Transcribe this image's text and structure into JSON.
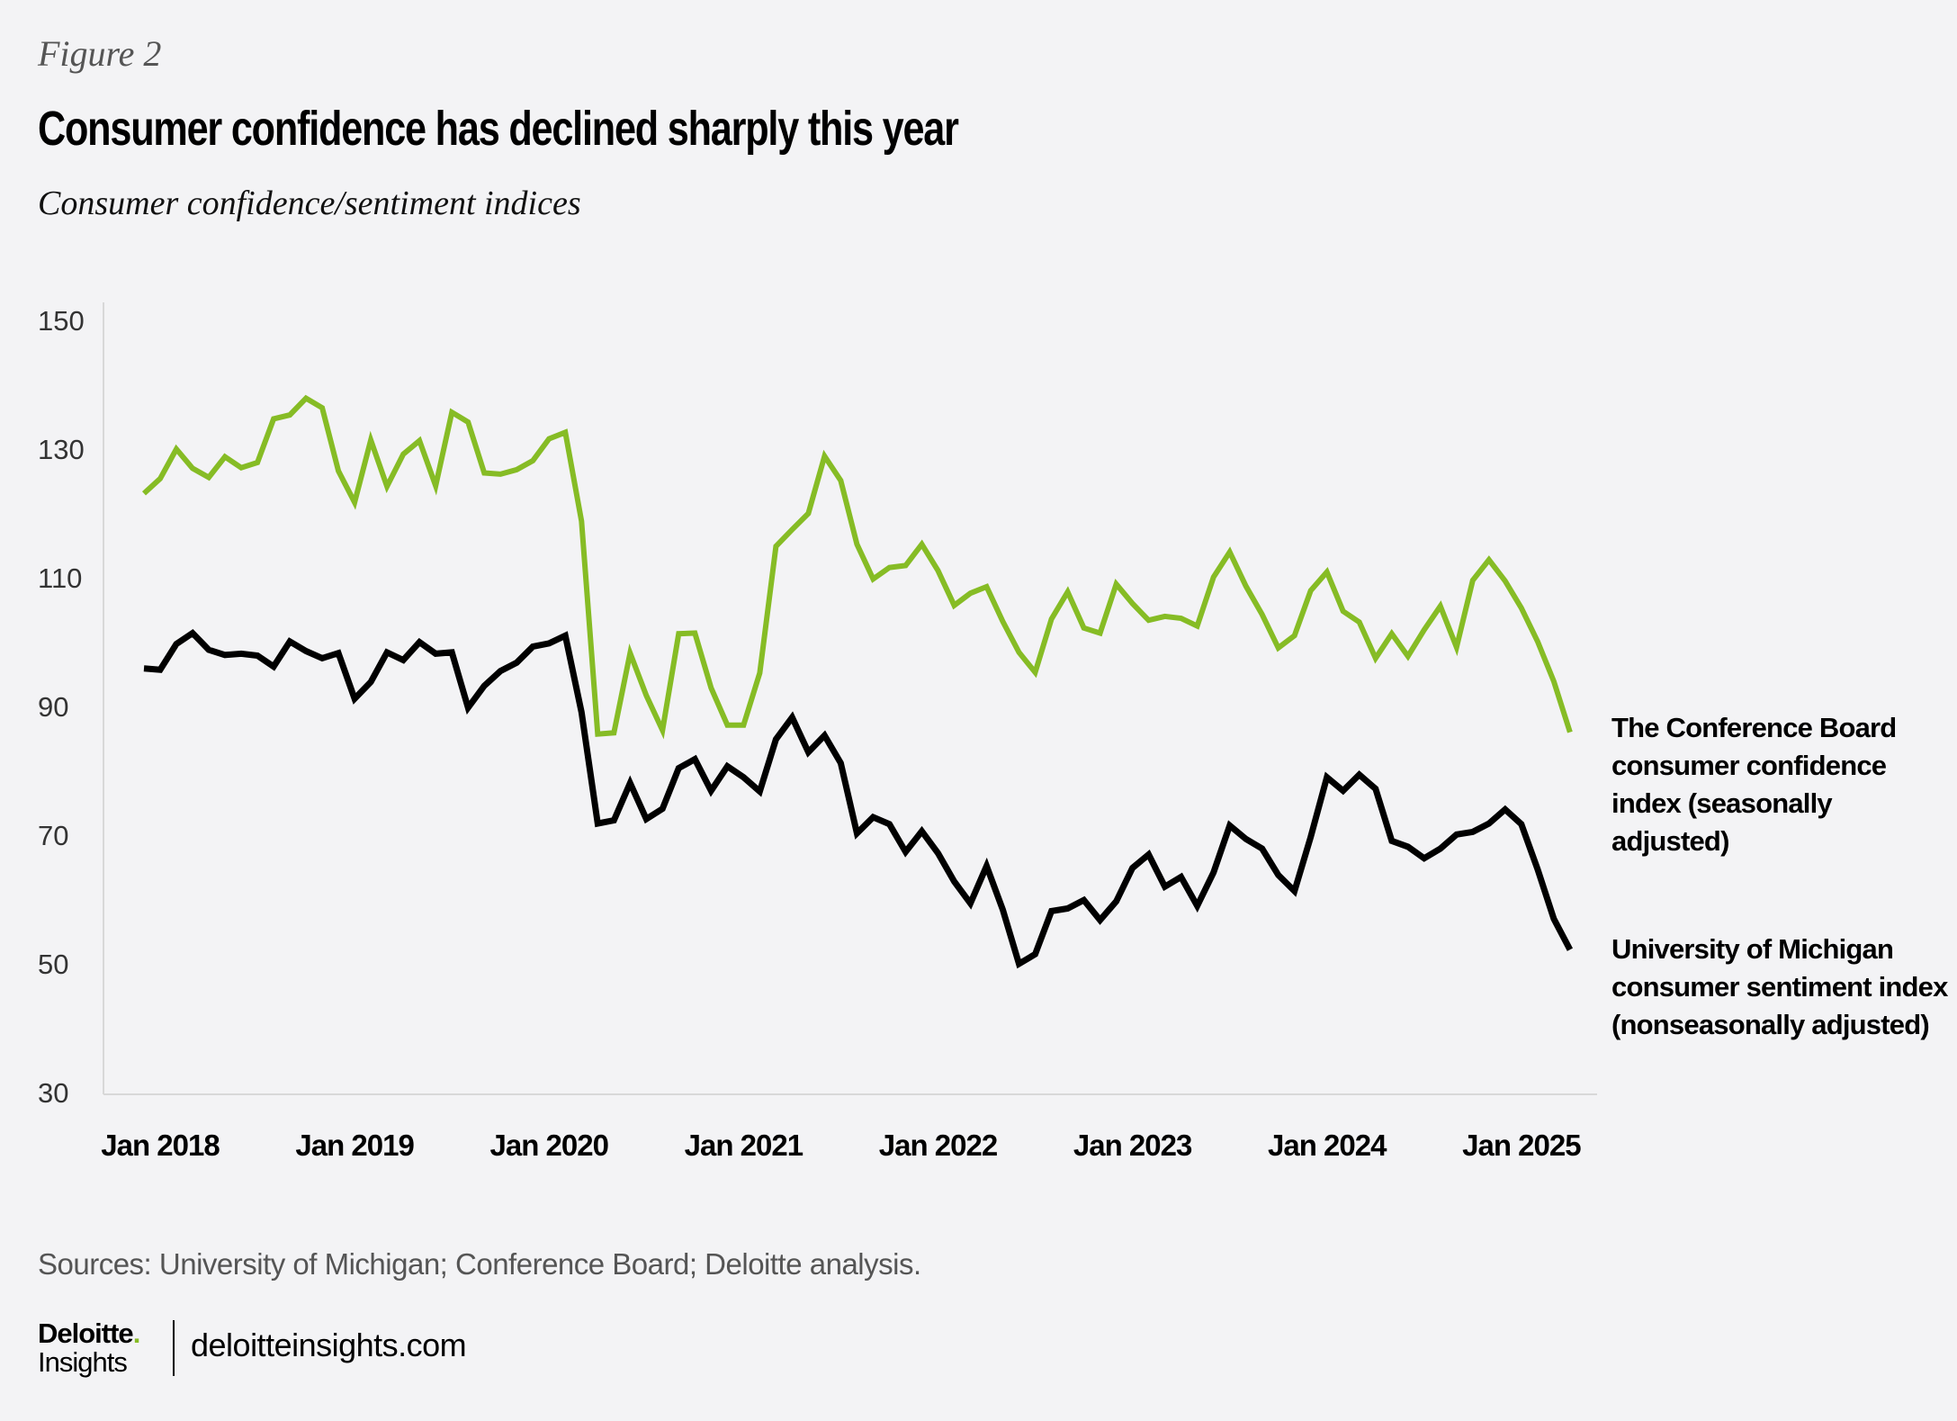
{
  "header": {
    "figure_label": "Figure 2",
    "title": "Consumer confidence has declined sharply this year",
    "subtitle": "Consumer confidence/sentiment indices"
  },
  "footer": {
    "sources": "Sources: University of Michigan; Conference Board; Deloitte analysis.",
    "logo_text": "Deloitte.",
    "logo_subtext": "Insights",
    "url": "deloitteinsights.com"
  },
  "colors": {
    "conference_board": "#86BC25",
    "michigan": "#000000",
    "background": "#F3F3F5"
  },
  "chart_data": {
    "type": "line",
    "title": "",
    "xlabel": "",
    "ylabel": "",
    "ylim": [
      30,
      150
    ],
    "yticks": [
      "150",
      "130",
      "110",
      "90",
      "70",
      "50",
      "30"
    ],
    "xticks": [
      "Jan 2018",
      "Jan 2019",
      "Jan 2020",
      "Jan 2021",
      "Jan 2022",
      "Jan 2023",
      "Jan 2024",
      "Jan 2025"
    ],
    "x_start": "Dec 2017",
    "x_end": "Apr 2025",
    "grid": false,
    "legend": "direct labels at right",
    "series": [
      {
        "name": "The Conference Board consumer confidence index (seasonally adjusted)",
        "values": [
          123.1,
          125.4,
          130.0,
          127.0,
          125.6,
          128.8,
          127.1,
          127.9,
          134.7,
          135.3,
          137.9,
          136.4,
          126.6,
          121.7,
          131.4,
          124.2,
          129.2,
          131.3,
          124.3,
          135.7,
          134.2,
          126.3,
          126.1,
          126.8,
          128.2,
          131.6,
          132.6,
          118.8,
          85.7,
          85.9,
          98.3,
          91.7,
          86.3,
          101.3,
          101.4,
          92.9,
          87.1,
          87.1,
          95.2,
          114.9,
          117.5,
          120.0,
          128.9,
          125.1,
          115.2,
          109.8,
          111.6,
          111.9,
          115.2,
          111.1,
          105.7,
          107.6,
          108.6,
          103.2,
          98.4,
          95.3,
          103.6,
          107.8,
          102.2,
          101.4,
          109.0,
          106.0,
          103.4,
          104.0,
          103.7,
          102.5,
          110.1,
          114.0,
          108.7,
          104.3,
          99.1,
          101.0,
          108.0,
          110.9,
          104.8,
          103.1,
          97.5,
          101.3,
          97.8,
          101.9,
          105.6,
          99.2,
          109.6,
          112.8,
          109.5,
          105.3,
          100.1,
          93.9,
          86.0
        ]
      },
      {
        "name": "University of Michigan consumer sentiment index (nonseasonally adjusted)",
        "values": [
          95.9,
          95.7,
          99.7,
          101.4,
          98.8,
          98.0,
          98.2,
          97.9,
          96.2,
          100.1,
          98.6,
          97.5,
          98.3,
          91.2,
          93.8,
          98.4,
          97.2,
          100.0,
          98.2,
          98.4,
          89.8,
          93.2,
          95.5,
          96.8,
          99.3,
          99.8,
          101.0,
          89.1,
          71.8,
          72.3,
          78.1,
          72.5,
          74.1,
          80.4,
          81.8,
          76.9,
          80.7,
          79.0,
          76.8,
          84.9,
          88.3,
          82.9,
          85.5,
          81.2,
          70.3,
          72.8,
          71.7,
          67.4,
          70.6,
          67.2,
          62.8,
          59.4,
          65.2,
          58.4,
          50.0,
          51.5,
          58.2,
          58.6,
          59.9,
          56.8,
          59.7,
          64.9,
          67.0,
          62.0,
          63.5,
          59.0,
          64.2,
          71.5,
          69.4,
          67.9,
          63.8,
          61.3,
          69.7,
          79.0,
          76.9,
          79.4,
          77.2,
          69.1,
          68.2,
          66.4,
          67.9,
          70.1,
          70.5,
          71.8,
          74.0,
          71.7,
          64.7,
          57.0,
          52.2
        ]
      }
    ]
  }
}
